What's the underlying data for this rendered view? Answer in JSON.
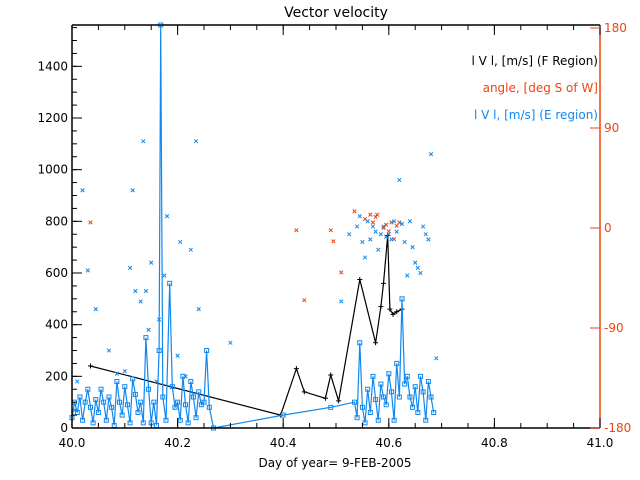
{
  "chart_data": {
    "type": "line",
    "title": "Vector velocity",
    "xlabel": "Day of year= 9-FEB-2005",
    "ylabel": "",
    "xlim": [
      40.0,
      41.0
    ],
    "ylim": [
      0,
      1560
    ],
    "y2lim": [
      -180,
      180
    ],
    "x_ticks": [
      "40.0",
      "40.2",
      "40.4",
      "40.6",
      "40.8",
      "41.0"
    ],
    "x_tick_values": [
      40.0,
      40.2,
      40.4,
      40.6,
      40.8,
      41.0
    ],
    "y_ticks": [
      "0",
      "200",
      "400",
      "600",
      "800",
      "1000",
      "1200",
      "1400"
    ],
    "y_tick_values": [
      0,
      200,
      400,
      600,
      800,
      1000,
      1200,
      1400
    ],
    "y2_ticks": [
      "-180",
      "-90",
      "0",
      "90",
      "180"
    ],
    "y2_tick_values": [
      -180,
      -90,
      0,
      90,
      180
    ],
    "grid": false,
    "legend_position": "top-right",
    "colors": {
      "axis": "#000000",
      "f_region": "#000000",
      "angle": "#ee4411",
      "e_region": "#1188ee"
    },
    "legend": [
      {
        "label": "l V l, [m/s] (F Region)",
        "series": "f_region"
      },
      {
        "label": "angle, [deg S of W]",
        "series": "angle"
      },
      {
        "label": "l V l, [m/s] (E region)",
        "series": "e_region"
      }
    ],
    "series": [
      {
        "name": "l V l, [m/s] (F Region)",
        "key": "f_region",
        "style": "line-plus",
        "x": [
          40.035,
          40.395,
          40.425,
          40.44,
          40.48,
          40.49,
          40.505,
          40.545,
          40.575,
          40.585,
          40.59,
          40.598,
          40.602,
          40.608,
          40.615,
          40.625
        ],
        "y": [
          240,
          50,
          230,
          140,
          115,
          205,
          105,
          575,
          330,
          470,
          560,
          745,
          460,
          440,
          450,
          460
        ]
      },
      {
        "name": "l V l, [m/s] (E region)",
        "key": "e_region",
        "style": "line-square",
        "x": [
          40.0,
          40.005,
          40.01,
          40.015,
          40.02,
          40.025,
          40.03,
          40.035,
          40.04,
          40.045,
          40.05,
          40.055,
          40.06,
          40.065,
          40.07,
          40.075,
          40.08,
          40.085,
          40.09,
          40.095,
          40.1,
          40.105,
          40.11,
          40.115,
          40.12,
          40.125,
          40.13,
          40.135,
          40.14,
          40.145,
          40.15,
          40.155,
          40.16,
          40.165,
          40.168,
          40.172,
          40.178,
          40.185,
          40.19,
          40.195,
          40.2,
          40.205,
          40.21,
          40.215,
          40.22,
          40.225,
          40.23,
          40.235,
          40.24,
          40.245,
          40.25,
          40.255,
          40.26,
          40.268,
          40.4,
          40.49,
          40.535,
          40.54,
          40.545,
          40.55,
          40.555,
          40.56,
          40.565,
          40.57,
          40.575,
          40.58,
          40.585,
          40.59,
          40.595,
          40.6,
          40.605,
          40.61,
          40.615,
          40.62,
          40.625,
          40.63,
          40.635,
          40.64,
          40.645,
          40.65,
          40.655,
          40.66,
          40.665,
          40.67,
          40.675,
          40.68,
          40.685
        ],
        "y": [
          40,
          100,
          60,
          120,
          30,
          100,
          150,
          80,
          20,
          110,
          60,
          150,
          100,
          30,
          120,
          80,
          10,
          180,
          100,
          50,
          160,
          90,
          20,
          190,
          130,
          60,
          100,
          20,
          350,
          150,
          20,
          100,
          10,
          300,
          1560,
          120,
          30,
          560,
          160,
          80,
          100,
          30,
          200,
          90,
          20,
          180,
          120,
          40,
          140,
          90,
          100,
          300,
          80,
          0,
          50,
          80,
          100,
          40,
          330,
          80,
          20,
          150,
          60,
          200,
          110,
          30,
          170,
          120,
          90,
          210,
          140,
          30,
          250,
          120,
          500,
          170,
          200,
          120,
          80,
          160,
          60,
          200,
          140,
          30,
          180,
          120,
          60
        ]
      },
      {
        "name": "angle, [deg S of W]",
        "key": "angle",
        "style": "cross",
        "axis": "right",
        "x": [
          40.035,
          40.425,
          40.44,
          40.49,
          40.495,
          40.51,
          40.535,
          40.555,
          40.565,
          40.57,
          40.575,
          40.578,
          40.59,
          40.595,
          40.6,
          40.605,
          40.61,
          40.615,
          40.62
        ],
        "y": [
          5,
          -2,
          -65,
          -2,
          -12,
          -40,
          15,
          8,
          12,
          5,
          10,
          12,
          0,
          3,
          -3,
          5,
          -10,
          2,
          5
        ]
      },
      {
        "name": "l V l, [m/s] (E region) samples",
        "key": "e_region_scatter",
        "style": "cross",
        "x": [
          40.005,
          40.01,
          40.02,
          40.03,
          40.045,
          40.07,
          40.085,
          40.1,
          40.11,
          40.115,
          40.12,
          40.13,
          40.135,
          40.14,
          40.145,
          40.15,
          40.16,
          40.165,
          40.175,
          40.18,
          40.2,
          40.205,
          40.215,
          40.225,
          40.235,
          40.24,
          40.3,
          40.51,
          40.525,
          40.54,
          40.545,
          40.55,
          40.555,
          40.56,
          40.565,
          40.57,
          40.575,
          40.58,
          40.585,
          40.59,
          40.595,
          40.6,
          40.605,
          40.61,
          40.615,
          40.62,
          40.625,
          40.63,
          40.635,
          40.64,
          40.645,
          40.65,
          40.655,
          40.66,
          40.665,
          40.67,
          40.675,
          40.68,
          40.69
        ],
        "y": [
          70,
          180,
          920,
          610,
          460,
          300,
          210,
          220,
          620,
          920,
          530,
          490,
          1110,
          530,
          380,
          640,
          180,
          420,
          590,
          820,
          280,
          720,
          200,
          690,
          1110,
          460,
          330,
          490,
          750,
          780,
          820,
          720,
          660,
          800,
          730,
          780,
          760,
          690,
          750,
          780,
          740,
          750,
          730,
          800,
          760,
          960,
          790,
          720,
          590,
          800,
          700,
          640,
          620,
          600,
          780,
          750,
          730,
          1060,
          270
        ]
      }
    ]
  }
}
